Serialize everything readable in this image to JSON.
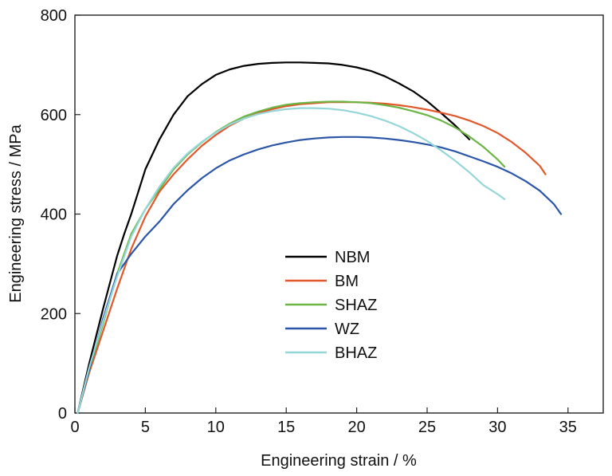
{
  "chart_data": {
    "type": "line",
    "title": "",
    "xlabel": "Engineering strain / %",
    "ylabel": "Engineering stress / MPa",
    "xlim": [
      0,
      37.5
    ],
    "ylim": [
      0,
      800
    ],
    "xticks": [
      0,
      5,
      10,
      15,
      20,
      25,
      30,
      35
    ],
    "yticks": [
      0,
      200,
      400,
      600,
      800
    ],
    "grid": false,
    "legend_position": "center",
    "series": [
      {
        "name": "NBM",
        "color": "#000000",
        "x": [
          0.2,
          1,
          2,
          3,
          3.5,
          4,
          4.5,
          5,
          6,
          7,
          8,
          9,
          10,
          11,
          12,
          13,
          14,
          15,
          16,
          17,
          18,
          19,
          20,
          21,
          22,
          23,
          24,
          25,
          26,
          27,
          28
        ],
        "y": [
          0,
          98,
          210,
          316,
          360,
          400,
          445,
          490,
          550,
          600,
          637,
          661,
          680,
          691,
          698,
          702,
          704,
          705,
          705,
          704,
          703,
          700,
          695,
          688,
          677,
          663,
          647,
          627,
          603,
          578,
          550
        ]
      },
      {
        "name": "BM",
        "color": "#e2572b",
        "x": [
          0.2,
          1,
          2,
          3,
          4,
          5,
          6,
          7,
          8,
          9,
          10,
          11,
          12,
          13,
          14,
          15,
          16,
          17,
          18,
          19,
          20,
          21,
          22,
          23,
          24,
          25,
          26,
          27,
          28,
          29,
          30,
          31,
          32,
          33,
          33.4
        ],
        "y": [
          0,
          80,
          165,
          250,
          330,
          395,
          445,
          480,
          510,
          537,
          559,
          578,
          592,
          603,
          611,
          617,
          621,
          623,
          625,
          625,
          625,
          624,
          622,
          619,
          615,
          610,
          604,
          597,
          588,
          577,
          563,
          545,
          523,
          497,
          480
        ]
      },
      {
        "name": "SHAZ",
        "color": "#6ab543",
        "x": [
          0.2,
          1,
          2,
          3,
          4,
          5,
          6,
          7,
          8,
          9,
          10,
          11,
          12,
          13,
          14,
          15,
          16,
          17,
          18,
          19,
          20,
          21,
          22,
          23,
          24,
          25,
          26,
          27,
          28,
          29,
          30,
          30.5
        ],
        "y": [
          0,
          85,
          180,
          280,
          360,
          410,
          450,
          490,
          520,
          544,
          565,
          582,
          596,
          606,
          614,
          620,
          623,
          625,
          626,
          626,
          625,
          623,
          619,
          614,
          607,
          599,
          588,
          574,
          556,
          535,
          510,
          495
        ]
      },
      {
        "name": "WZ",
        "color": "#2b56a8",
        "x": [
          0.2,
          1,
          2,
          3,
          3.5,
          4,
          5,
          6,
          7,
          8,
          9,
          10,
          11,
          12,
          13,
          14,
          15,
          16,
          17,
          18,
          19,
          20,
          21,
          22,
          23,
          24,
          25,
          26,
          27,
          28,
          29,
          30,
          31,
          32,
          33,
          34,
          34.5
        ],
        "y": [
          0,
          85,
          190,
          280,
          300,
          320,
          355,
          385,
          420,
          448,
          472,
          492,
          508,
          520,
          530,
          538,
          544,
          549,
          552,
          554,
          555,
          555,
          554,
          552,
          549,
          545,
          540,
          534,
          526,
          516,
          506,
          495,
          482,
          466,
          447,
          420,
          400
        ]
      },
      {
        "name": "BHAZ",
        "color": "#95d6d7",
        "x": [
          0.2,
          1,
          2,
          3,
          4,
          5,
          6,
          7,
          8,
          9,
          10,
          11,
          12,
          13,
          14,
          15,
          16,
          17,
          18,
          19,
          20,
          21,
          22,
          23,
          24,
          25,
          26,
          27,
          28,
          29,
          30,
          30.5
        ],
        "y": [
          0,
          90,
          185,
          275,
          355,
          410,
          455,
          493,
          522,
          545,
          564,
          580,
          592,
          601,
          607,
          611,
          613,
          613,
          612,
          609,
          604,
          597,
          588,
          577,
          563,
          547,
          528,
          507,
          484,
          458,
          440,
          430
        ]
      }
    ]
  }
}
